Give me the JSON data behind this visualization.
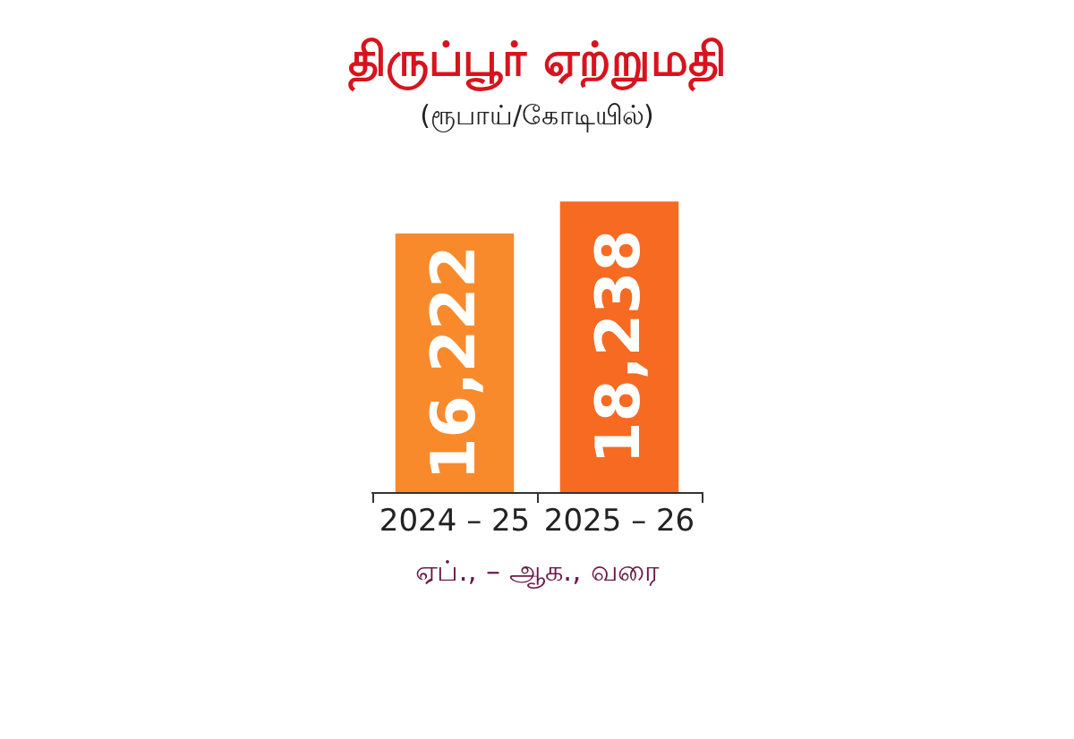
{
  "chart_data": {
    "type": "bar",
    "title": "திருப்பூர் ஏற்றுமதி",
    "subtitle": "(ரூபாய்/கோடியில்)",
    "xlabel": "ஏப்., – ஆக., வரை",
    "categories": [
      "2024 – 25",
      "2025 – 26"
    ],
    "values": [
      16222,
      18238
    ],
    "colors": [
      "#f98a2c",
      "#f76a22"
    ],
    "value_labels": [
      "16,222",
      "18,238"
    ]
  }
}
